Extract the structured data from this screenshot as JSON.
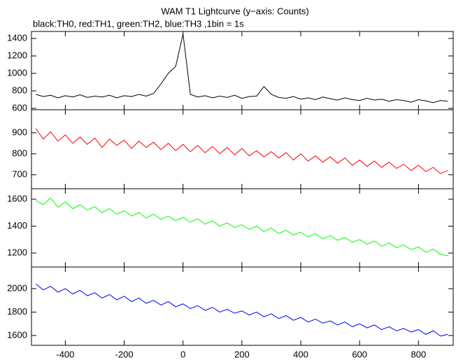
{
  "title": "WAM T1 Lightcurve (y−axis: Counts)",
  "subtitle": "black:TH0, red:TH1, green:TH2, blue:TH3 ,1bin = 1s",
  "chart_data": [
    {
      "type": "line",
      "xlim": [
        -515,
        918
      ],
      "ylim": [
        584,
        1480
      ],
      "yticks": [
        600,
        800,
        1000,
        1200,
        1400
      ],
      "x": [
        -500,
        -475,
        -450,
        -425,
        -400,
        -375,
        -350,
        -325,
        -300,
        -275,
        -250,
        -225,
        -200,
        -175,
        -150,
        -125,
        -100,
        -75,
        -50,
        -25,
        0,
        25,
        50,
        75,
        100,
        125,
        150,
        175,
        200,
        225,
        250,
        275,
        300,
        325,
        350,
        375,
        400,
        425,
        450,
        475,
        500,
        525,
        550,
        575,
        600,
        625,
        650,
        675,
        700,
        725,
        750,
        775,
        800,
        825,
        850,
        875,
        900
      ],
      "series": [
        {
          "color": "#000000",
          "values": [
            760,
            735,
            750,
            720,
            745,
            730,
            755,
            725,
            740,
            730,
            750,
            720,
            745,
            735,
            760,
            740,
            770,
            880,
            1000,
            1080,
            1450,
            760,
            730,
            745,
            720,
            740,
            725,
            750,
            715,
            735,
            740,
            850,
            760,
            725,
            715,
            735,
            705,
            720,
            700,
            730,
            710,
            695,
            720,
            700,
            690,
            715,
            695,
            705,
            680,
            700,
            690,
            670,
            700,
            685,
            665,
            690,
            680
          ]
        }
      ]
    },
    {
      "type": "line",
      "xlim": [
        -515,
        918
      ],
      "ylim": [
        633,
        1010
      ],
      "yticks": [
        700,
        800,
        900
      ],
      "x": [
        -500,
        -475,
        -450,
        -425,
        -400,
        -375,
        -350,
        -325,
        -300,
        -275,
        -250,
        -225,
        -200,
        -175,
        -150,
        -125,
        -100,
        -75,
        -50,
        -25,
        0,
        25,
        50,
        75,
        100,
        125,
        150,
        175,
        200,
        225,
        250,
        275,
        300,
        325,
        350,
        375,
        400,
        425,
        450,
        475,
        500,
        525,
        550,
        575,
        600,
        625,
        650,
        675,
        700,
        725,
        750,
        775,
        800,
        825,
        850,
        875,
        900
      ],
      "series": [
        {
          "color": "#ff0000",
          "values": [
            920,
            870,
            905,
            860,
            890,
            850,
            880,
            845,
            875,
            830,
            870,
            840,
            865,
            825,
            860,
            830,
            855,
            820,
            850,
            815,
            845,
            810,
            840,
            805,
            835,
            800,
            830,
            795,
            825,
            790,
            815,
            785,
            810,
            780,
            805,
            770,
            800,
            765,
            790,
            760,
            785,
            755,
            780,
            745,
            770,
            740,
            765,
            735,
            760,
            730,
            750,
            720,
            745,
            715,
            735,
            705,
            720
          ]
        }
      ]
    },
    {
      "type": "line",
      "xlim": [
        -515,
        918
      ],
      "ylim": [
        1096,
        1678
      ],
      "yticks": [
        1200,
        1400,
        1600
      ],
      "x": [
        -500,
        -475,
        -450,
        -425,
        -400,
        -375,
        -350,
        -325,
        -300,
        -275,
        -250,
        -225,
        -200,
        -175,
        -150,
        -125,
        -100,
        -75,
        -50,
        -25,
        0,
        25,
        50,
        75,
        100,
        125,
        150,
        175,
        200,
        225,
        250,
        275,
        300,
        325,
        350,
        375,
        400,
        425,
        450,
        475,
        500,
        525,
        550,
        575,
        600,
        625,
        650,
        675,
        700,
        725,
        750,
        775,
        800,
        825,
        850,
        875,
        900
      ],
      "series": [
        {
          "color": "#00ff00",
          "values": [
            1590,
            1560,
            1610,
            1540,
            1580,
            1530,
            1560,
            1520,
            1545,
            1500,
            1530,
            1490,
            1515,
            1475,
            1500,
            1460,
            1490,
            1450,
            1475,
            1440,
            1465,
            1430,
            1455,
            1415,
            1440,
            1400,
            1425,
            1390,
            1410,
            1375,
            1400,
            1360,
            1385,
            1345,
            1370,
            1335,
            1355,
            1320,
            1345,
            1305,
            1330,
            1295,
            1315,
            1280,
            1300,
            1265,
            1290,
            1250,
            1275,
            1240,
            1260,
            1225,
            1245,
            1205,
            1230,
            1190,
            1180
          ]
        }
      ]
    },
    {
      "type": "line",
      "xlim": [
        -515,
        918
      ],
      "ylim": [
        1516,
        2185
      ],
      "yticks": [
        1600,
        1800,
        2000
      ],
      "xticks": [
        -400,
        -200,
        0,
        200,
        400,
        600,
        800
      ],
      "x": [
        -500,
        -475,
        -450,
        -425,
        -400,
        -375,
        -350,
        -325,
        -300,
        -275,
        -250,
        -225,
        -200,
        -175,
        -150,
        -125,
        -100,
        -75,
        -50,
        -25,
        0,
        25,
        50,
        75,
        100,
        125,
        150,
        175,
        200,
        225,
        250,
        275,
        300,
        325,
        350,
        375,
        400,
        425,
        450,
        475,
        500,
        525,
        550,
        575,
        600,
        625,
        650,
        675,
        700,
        725,
        750,
        775,
        800,
        825,
        850,
        875,
        900
      ],
      "series": [
        {
          "color": "#0000ff",
          "values": [
            2040,
            1990,
            2020,
            1970,
            2000,
            1955,
            1985,
            1940,
            1965,
            1920,
            1950,
            1905,
            1935,
            1890,
            1920,
            1875,
            1900,
            1860,
            1890,
            1845,
            1870,
            1830,
            1855,
            1815,
            1840,
            1800,
            1825,
            1790,
            1810,
            1775,
            1800,
            1760,
            1785,
            1745,
            1770,
            1730,
            1755,
            1715,
            1740,
            1705,
            1725,
            1690,
            1715,
            1675,
            1700,
            1665,
            1690,
            1650,
            1675,
            1640,
            1660,
            1630,
            1650,
            1610,
            1640,
            1595,
            1610
          ]
        }
      ]
    }
  ]
}
